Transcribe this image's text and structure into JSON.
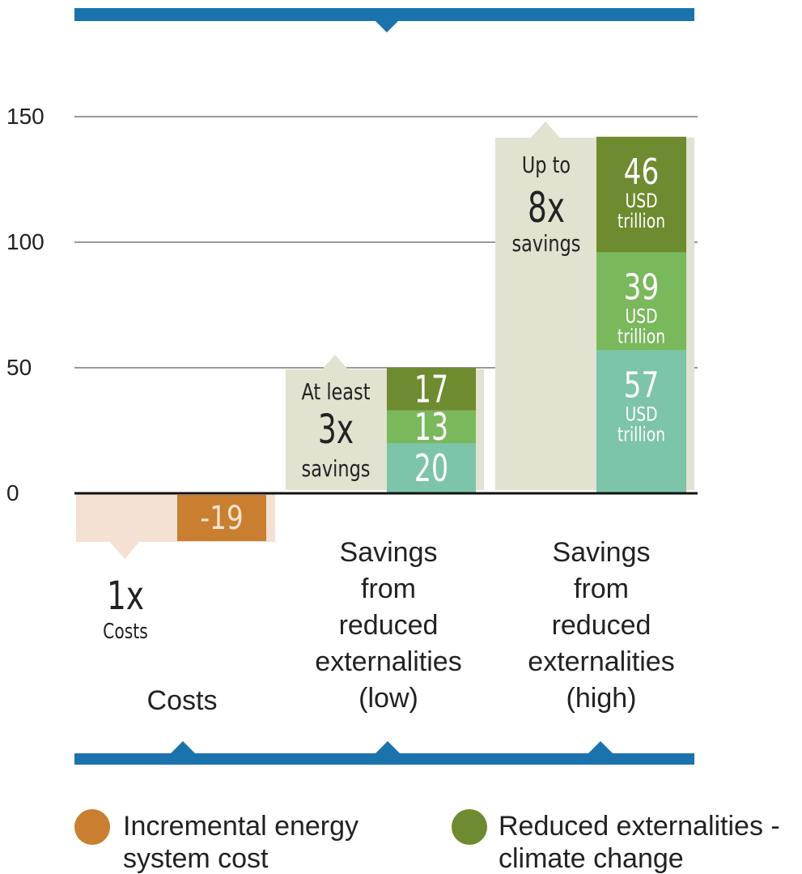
{
  "chart_data": {
    "type": "bar",
    "y_ticks": [
      "150",
      "100",
      "50",
      "0"
    ],
    "ylim": [
      -19,
      150
    ],
    "grid": true,
    "categories": [
      {
        "key": "costs",
        "label_lines": [
          "Costs"
        ],
        "multiplier": "1x",
        "multiplier_caption": "Costs",
        "total": -19,
        "segments": [
          {
            "series": "Incremental energy system cost",
            "value": -19,
            "label": "-19",
            "color": "#c97f2f"
          }
        ]
      },
      {
        "key": "low",
        "label_lines": [
          "Savings",
          "from",
          "reduced",
          "externalities",
          "(low)"
        ],
        "multiplier_prefix": "At least",
        "multiplier": "3x",
        "multiplier_caption": "savings",
        "total": 50,
        "segments": [
          {
            "series": "bottom",
            "value": 20,
            "label": "20",
            "color": "#7cc4aa"
          },
          {
            "series": "middle",
            "value": 13,
            "label": "13",
            "color": "#7ab85c"
          },
          {
            "series": "Reduced externalities - climate change",
            "value": 17,
            "label": "17",
            "color": "#6e8b2f"
          }
        ]
      },
      {
        "key": "high",
        "label_lines": [
          "Savings",
          "from",
          "reduced",
          "externalities",
          "(high)"
        ],
        "multiplier_prefix": "Up to",
        "multiplier": "8x",
        "multiplier_caption": "savings",
        "total": 142,
        "segments": [
          {
            "series": "bottom",
            "value": 57,
            "label": "57",
            "unit": [
              "USD",
              "trillion"
            ],
            "color": "#7cc4aa"
          },
          {
            "series": "middle",
            "value": 39,
            "label": "39",
            "unit": [
              "USD",
              "trillion"
            ],
            "color": "#7ab85c"
          },
          {
            "series": "Reduced externalities - climate change",
            "value": 46,
            "label": "46",
            "unit": [
              "USD",
              "trillion"
            ],
            "color": "#6e8b2f"
          }
        ]
      }
    ],
    "legend": [
      {
        "label_lines": [
          "Incremental energy",
          "system cost"
        ],
        "color": "#c97f2f"
      },
      {
        "label_lines": [
          "Reduced externalities -",
          "climate change"
        ],
        "color": "#6e8b2f"
      }
    ]
  },
  "colors": {
    "frame": "#1a73ad",
    "grid": "#999999",
    "panel_light": "#e1e2d0",
    "panel_cost": "#f4e1d4",
    "axis": "#111111",
    "text": "#222222",
    "label_on_bar": "#ffffff",
    "label_cost": "#f6e3cf"
  }
}
